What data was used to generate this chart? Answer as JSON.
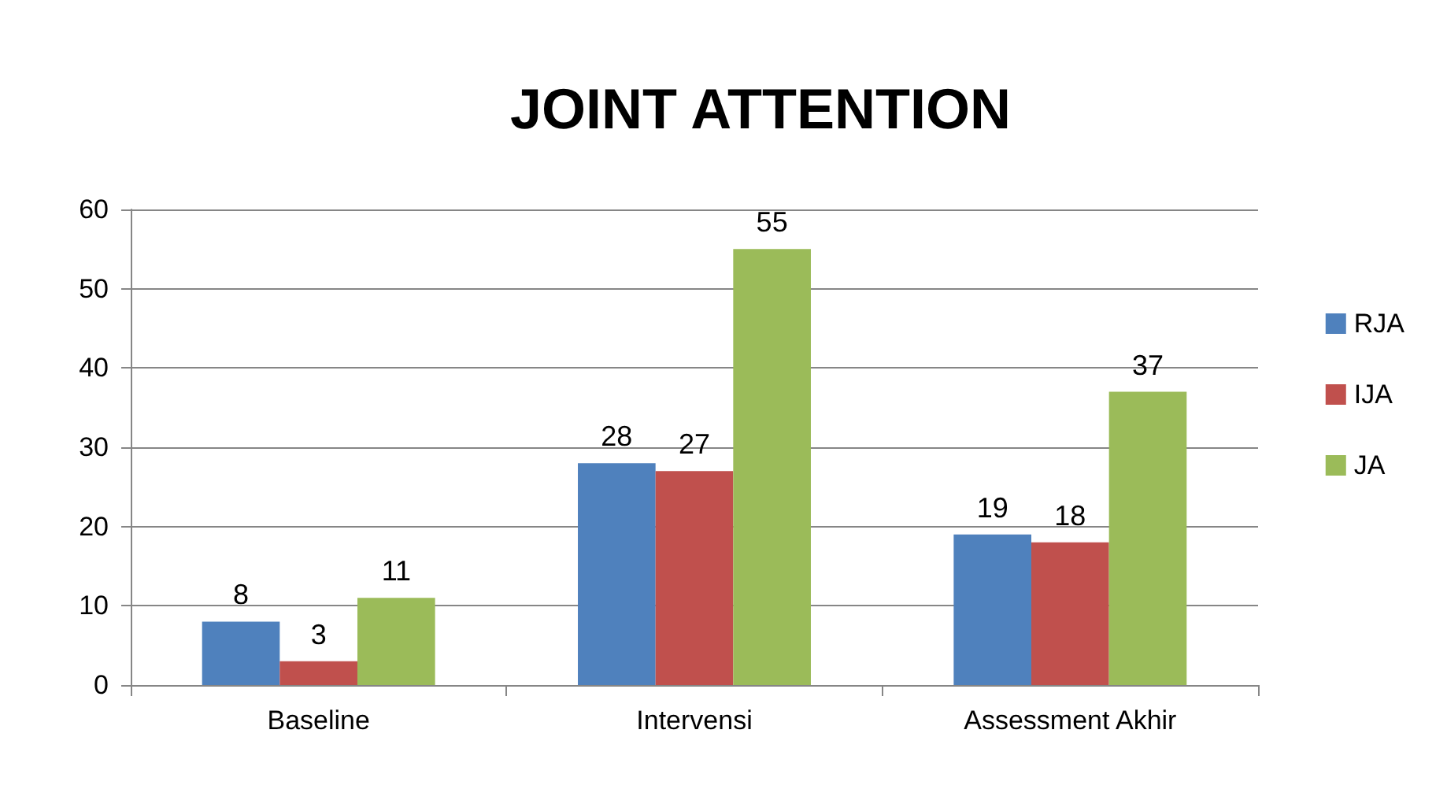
{
  "chart_data": {
    "type": "bar",
    "title": "JOINT ATTENTION",
    "categories": [
      "Baseline",
      "Intervensi",
      "Assessment Akhir"
    ],
    "series": [
      {
        "name": "RJA",
        "color": "#4f81bd",
        "values": [
          8,
          28,
          19
        ]
      },
      {
        "name": "IJA",
        "color": "#c0504d",
        "values": [
          3,
          27,
          18
        ]
      },
      {
        "name": "JA",
        "color": "#9bbb59",
        "values": [
          11,
          55,
          37
        ]
      }
    ],
    "ylim": [
      0,
      60
    ],
    "yticks": [
      0,
      10,
      20,
      30,
      40,
      50,
      60
    ],
    "grid": "y",
    "legend": "right",
    "data_labels": true
  }
}
